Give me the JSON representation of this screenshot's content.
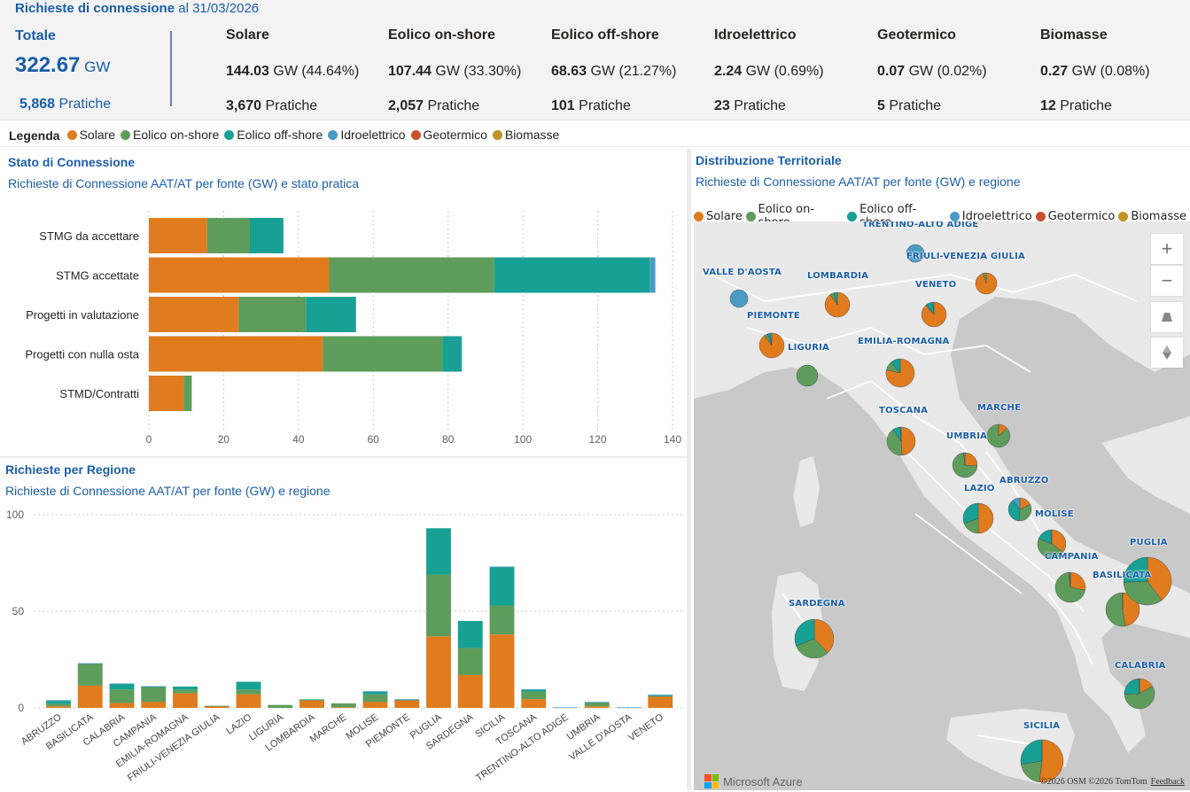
{
  "header": {
    "title_bold": "Richieste di connessione",
    "title_rest": " al 31/03/2026"
  },
  "totale": {
    "label": "Totale",
    "value": "322.67",
    "unit": " GW",
    "pratiche_count": "5,868",
    "pratiche_label": " Pratiche"
  },
  "kpis": [
    {
      "name": "Solare",
      "gw": "144.03",
      "rest": " GW (44.64%)",
      "prat": "3,670",
      "prat_label": " Pratiche"
    },
    {
      "name": "Eolico on-shore",
      "gw": "107.44",
      "rest": " GW (33.30%)",
      "prat": "2,057",
      "prat_label": " Pratiche"
    },
    {
      "name": "Eolico off-shore",
      "gw": "68.63",
      "rest": " GW (21.27%)",
      "prat": "101",
      "prat_label": " Pratiche"
    },
    {
      "name": "Idroelettrico",
      "gw": "2.24",
      "rest": " GW (0.69%)",
      "prat": "23",
      "prat_label": " Pratiche"
    },
    {
      "name": "Geotermico",
      "gw": "0.07",
      "rest": " GW (0.02%)",
      "prat": "5",
      "prat_label": " Pratiche"
    },
    {
      "name": "Biomasse",
      "gw": "0.27",
      "rest": " GW (0.08%)",
      "prat": "12",
      "prat_label": " Pratiche"
    }
  ],
  "legend": {
    "title": "Legenda",
    "items": [
      {
        "label": "Solare",
        "color": "#e07b1e"
      },
      {
        "label": "Eolico on-shore",
        "color": "#5e9c5b"
      },
      {
        "label": "Eolico off-shore",
        "color": "#17a094"
      },
      {
        "label": "Idroelettrico",
        "color": "#4a9bc6"
      },
      {
        "label": "Geotermico",
        "color": "#c9502a"
      },
      {
        "label": "Biomasse",
        "color": "#bf9422"
      }
    ]
  },
  "panels": {
    "stato": {
      "title": "Stato di Connessione",
      "subtitle": "Richieste di Connessione AAT/AT per fonte (GW) e stato pratica"
    },
    "regione": {
      "title": "Richieste per Regione",
      "subtitle": "Richieste di Connessione AAT/AT per fonte (GW) e regione"
    },
    "territorio": {
      "title": "Distribuzione Territoriale",
      "subtitle": "Richieste di Connessione AAT/AT per fonte (GW) e regione"
    }
  },
  "map": {
    "attribution_brand": "Microsoft Azure",
    "copyright": "©2026 OSM  ©2026 TomTom",
    "feedback": "Feedback",
    "controls": [
      "zoom-in",
      "zoom-out",
      "tilt",
      "compass"
    ],
    "regions": [
      {
        "name": "TRENTINO-ALTO ADIGE",
        "values": [
          0,
          0,
          0,
          1,
          0,
          0
        ]
      },
      {
        "name": "FRIULI-VENEZIA GIULIA",
        "values": [
          1.0,
          0.05,
          0,
          0,
          0,
          0
        ]
      },
      {
        "name": "VALLE D'AOSTA",
        "values": [
          0,
          0,
          0,
          1,
          0,
          0
        ]
      },
      {
        "name": "LOMBARDIA",
        "values": [
          3.8,
          0.2,
          0.2,
          0,
          0,
          0
        ]
      },
      {
        "name": "VENETO",
        "values": [
          6.0,
          0.1,
          0.6,
          0.1,
          0,
          0
        ]
      },
      {
        "name": "PIEMONTE",
        "values": [
          4.0,
          0.2,
          0.15,
          0.1,
          0,
          0
        ]
      },
      {
        "name": "LIGURIA",
        "values": [
          0,
          1.5,
          0,
          0,
          0,
          0
        ]
      },
      {
        "name": "EMILIA-ROMAGNA",
        "values": [
          8.0,
          1.0,
          1.2,
          0,
          0,
          0
        ]
      },
      {
        "name": "TOSCANA",
        "values": [
          4.5,
          3.8,
          0.8,
          0.1,
          0,
          0
        ]
      },
      {
        "name": "MARCHE",
        "values": [
          0.3,
          2.0,
          0,
          0,
          0,
          0
        ]
      },
      {
        "name": "UMBRIA",
        "values": [
          0.8,
          2.2,
          0,
          0.05,
          0,
          0
        ]
      },
      {
        "name": "LAZIO",
        "values": [
          6.5,
          2.5,
          4.0,
          0,
          0,
          0
        ]
      },
      {
        "name": "ABRUZZO",
        "values": [
          0.7,
          1.3,
          1.5,
          0.4,
          0,
          0
        ]
      },
      {
        "name": "MOLISE",
        "values": [
          3.0,
          4.0,
          1.5,
          0.1,
          0,
          0
        ]
      },
      {
        "name": "CAMPANIA",
        "values": [
          3.0,
          7.5,
          0.1,
          0.1,
          0,
          0
        ]
      },
      {
        "name": "BASILICATA",
        "values": [
          11.0,
          12.0,
          0,
          0.1,
          0,
          0
        ]
      },
      {
        "name": "PUGLIA",
        "values": [
          37.0,
          32.0,
          24.0,
          0,
          0,
          0
        ]
      },
      {
        "name": "SARDEGNA",
        "values": [
          17.0,
          14.0,
          14.0,
          0,
          0,
          0
        ]
      },
      {
        "name": "CALABRIA",
        "values": [
          2.0,
          7.0,
          3.0,
          0.1,
          0,
          0
        ]
      },
      {
        "name": "SICILIA",
        "values": [
          38.0,
          15.0,
          20.0,
          0.1,
          0,
          0
        ]
      }
    ]
  },
  "chart_data": [
    {
      "type": "bar",
      "orientation": "horizontal",
      "stacked": true,
      "title": "Stato di Connessione",
      "subtitle": "Richieste di Connessione AAT/AT per fonte (GW) e stato pratica",
      "categories": [
        "STMG da accettare",
        "STMG accettate",
        "Progetti in valutazione",
        "Progetti con nulla osta",
        "STMD/Contratti"
      ],
      "series": [
        {
          "name": "Solare",
          "color": "#e07b1e",
          "values": [
            15.6,
            48.2,
            24.0,
            46.5,
            9.3
          ]
        },
        {
          "name": "Eolico on-shore",
          "color": "#5e9c5b",
          "values": [
            11.4,
            44.1,
            18.0,
            32.0,
            2.1
          ]
        },
        {
          "name": "Eolico off-shore",
          "color": "#17a094",
          "values": [
            8.9,
            41.6,
            13.3,
            5.0,
            0
          ]
        },
        {
          "name": "Idroelettrico",
          "color": "#4a9bc6",
          "values": [
            0.1,
            1.5,
            0.1,
            0.2,
            0.1
          ]
        }
      ],
      "xlim": [
        0,
        140
      ],
      "xticks": [
        "0",
        "20",
        "40",
        "60",
        "80",
        "100",
        "120",
        "140"
      ],
      "grid": true
    },
    {
      "type": "bar",
      "orientation": "vertical",
      "stacked": true,
      "title": "Richieste per Regione",
      "subtitle": "Richieste di Connessione AAT/AT per fonte (GW) e regione",
      "categories": [
        "ABRUZZO",
        "BASILICATA",
        "CALABRIA",
        "CAMPANIA",
        "EMILIA-ROMAGNA",
        "FRIULI-VENEZIA GIULIA",
        "LAZIO",
        "LIGURIA",
        "LOMBARDIA",
        "MARCHE",
        "MOLISE",
        "PIEMONTE",
        "PUGLIA",
        "SARDEGNA",
        "SICILIA",
        "TOSCANA",
        "TRENTINO-ALTO ADIGE",
        "UMBRIA",
        "VALLE D'AOSTA",
        "VENETO"
      ],
      "series": [
        {
          "name": "Solare",
          "color": "#e07b1e",
          "values": [
            0.8,
            11.5,
            2.5,
            3.0,
            7.5,
            1.0,
            7.0,
            0,
            4.0,
            0.3,
            3.0,
            4.0,
            37.0,
            17.0,
            38.0,
            4.5,
            0,
            0.8,
            0,
            6.0
          ]
        },
        {
          "name": "Eolico on-shore",
          "color": "#5e9c5b",
          "values": [
            1.3,
            11.5,
            7.0,
            8.0,
            2.0,
            0.05,
            2.5,
            1.5,
            0.2,
            2.0,
            4.0,
            0.2,
            32.0,
            14.0,
            15.0,
            4.0,
            0,
            2.2,
            0,
            0.1
          ]
        },
        {
          "name": "Eolico off-shore",
          "color": "#17a094",
          "values": [
            1.5,
            0,
            3.0,
            0.1,
            1.5,
            0,
            4.0,
            0,
            0.2,
            0,
            1.5,
            0.15,
            24.0,
            14.0,
            20.0,
            1.0,
            0,
            0,
            0,
            0.6
          ]
        },
        {
          "name": "Idroelettrico",
          "color": "#4a9bc6",
          "values": [
            0.4,
            0.1,
            0.1,
            0.1,
            0,
            0,
            0,
            0,
            0,
            0,
            0.1,
            0.1,
            0,
            0,
            0.1,
            0.1,
            0.3,
            0.05,
            0.3,
            0.1
          ]
        }
      ],
      "ylim": [
        0,
        100
      ],
      "yticks": [
        "0",
        "50",
        "100"
      ],
      "grid": true
    }
  ]
}
